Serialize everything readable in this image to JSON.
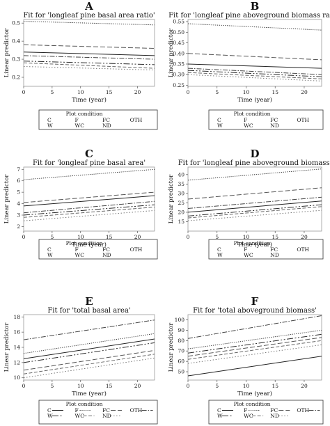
{
  "legend": {
    "title": "Plot condition",
    "items": [
      "C",
      "F",
      "FC",
      "OTH",
      "W",
      "WC",
      "ND"
    ]
  },
  "styles": {
    "C": {
      "dash": "none",
      "color": "#222222"
    },
    "F": {
      "dash": "1.2,1.6",
      "color": "#333333"
    },
    "FC": {
      "dash": "7,3",
      "color": "#555555"
    },
    "OTH": {
      "dash": "7,2,1.5,2",
      "color": "#444444"
    },
    "W": {
      "dash": "9,2.5,2,2.5,2,2.5",
      "color": "#2a2a2a"
    },
    "WC": {
      "dash": "5,2.5",
      "color": "#666666"
    },
    "ND": {
      "dash": "1.5,2.5",
      "color": "#777777"
    }
  },
  "chart_data": [
    {
      "letter": "A",
      "type": "line",
      "title": "Fit for 'longleaf pine basal area ratio'",
      "xlabel": "Time (year)",
      "ylabel": "Linear predictor",
      "xlim": [
        0,
        23
      ],
      "ylim": [
        0.15,
        0.52
      ],
      "xticks": [
        "0",
        "5",
        "10",
        "15",
        "20"
      ],
      "yticks": [
        "0.2",
        "0.3",
        "0.4",
        "0.5"
      ],
      "x": [
        0,
        23
      ],
      "series": [
        {
          "name": "F",
          "values": [
            0.51,
            0.49
          ]
        },
        {
          "name": "FC",
          "values": [
            0.38,
            0.36
          ]
        },
        {
          "name": "C",
          "values": [
            0.34,
            0.32
          ]
        },
        {
          "name": "OTH",
          "values": [
            0.32,
            0.3
          ]
        },
        {
          "name": "W",
          "values": [
            0.29,
            0.27
          ]
        },
        {
          "name": "WC",
          "values": [
            0.28,
            0.25
          ]
        },
        {
          "name": "ND",
          "values": [
            0.26,
            0.24
          ]
        }
      ]
    },
    {
      "letter": "B",
      "type": "line",
      "title": "Fit for 'longleaf pine aboveground biomass ratio'",
      "xlabel": "Time (year)",
      "ylabel": "Linear predictor",
      "xlim": [
        0,
        23
      ],
      "ylim": [
        0.245,
        0.56
      ],
      "xticks": [
        "0",
        "5",
        "10",
        "15",
        "20"
      ],
      "yticks": [
        "0.25",
        "0.30",
        "0.35",
        "0.40",
        "0.45",
        "0.50",
        "0.55"
      ],
      "x": [
        0,
        23
      ],
      "series": [
        {
          "name": "F",
          "values": [
            0.54,
            0.51
          ]
        },
        {
          "name": "FC",
          "values": [
            0.4,
            0.37
          ]
        },
        {
          "name": "C",
          "values": [
            0.35,
            0.33
          ]
        },
        {
          "name": "OTH",
          "values": [
            0.33,
            0.3
          ]
        },
        {
          "name": "W",
          "values": [
            0.32,
            0.29
          ]
        },
        {
          "name": "WC",
          "values": [
            0.31,
            0.28
          ]
        },
        {
          "name": "ND",
          "values": [
            0.3,
            0.27
          ]
        }
      ]
    },
    {
      "letter": "C",
      "type": "line",
      "title": "Fit for 'longleaf pine basal area'",
      "xlabel": "Time (year)",
      "ylabel": "Linear predictor",
      "xlim": [
        0,
        23
      ],
      "ylim": [
        1.6,
        7.2
      ],
      "xticks": [
        "0",
        "5",
        "10",
        "15",
        "20"
      ],
      "yticks": [
        "2",
        "3",
        "4",
        "5",
        "6",
        "7"
      ],
      "x": [
        0,
        23
      ],
      "series": [
        {
          "name": "F",
          "values": [
            6.1,
            7.0
          ]
        },
        {
          "name": "FC",
          "values": [
            4.1,
            5.0
          ]
        },
        {
          "name": "C",
          "values": [
            3.8,
            4.7
          ]
        },
        {
          "name": "OTH",
          "values": [
            3.2,
            4.2
          ]
        },
        {
          "name": "W",
          "values": [
            3.0,
            3.9
          ]
        },
        {
          "name": "WC",
          "values": [
            2.8,
            3.7
          ]
        },
        {
          "name": "ND",
          "values": [
            2.5,
            3.4
          ]
        }
      ]
    },
    {
      "letter": "D",
      "type": "line",
      "title": "Fit for 'longleaf pine aboveground biomass'",
      "xlabel": "Time (year)",
      "ylabel": "Linear predictor",
      "xlim": [
        0,
        23
      ],
      "ylim": [
        10,
        44
      ],
      "xticks": [
        "0",
        "5",
        "10",
        "15",
        "20"
      ],
      "yticks": [
        "15",
        "20",
        "25",
        "30",
        "35",
        "40"
      ],
      "x": [
        0,
        23
      ],
      "series": [
        {
          "name": "F",
          "values": [
            37,
            43
          ]
        },
        {
          "name": "FC",
          "values": [
            27,
            33
          ]
        },
        {
          "name": "OTH",
          "values": [
            22,
            28
          ]
        },
        {
          "name": "C",
          "values": [
            20,
            26
          ]
        },
        {
          "name": "W",
          "values": [
            18,
            24
          ]
        },
        {
          "name": "WC",
          "values": [
            17,
            23
          ]
        },
        {
          "name": "ND",
          "values": [
            15.5,
            21
          ]
        }
      ]
    },
    {
      "letter": "E",
      "type": "line",
      "title": "Fit for 'total basal area'",
      "xlabel": "Time (year)",
      "ylabel": "Linear predictor",
      "xlim": [
        0,
        23
      ],
      "ylim": [
        9.7,
        18.3
      ],
      "xticks": [
        "0",
        "5",
        "10",
        "15",
        "20"
      ],
      "yticks": [
        "10",
        "12",
        "14",
        "16",
        "18"
      ],
      "x": [
        0,
        23
      ],
      "series": [
        {
          "name": "OTH",
          "values": [
            15.0,
            17.6
          ]
        },
        {
          "name": "F",
          "values": [
            13.2,
            15.8
          ]
        },
        {
          "name": "C",
          "values": [
            12.5,
            15.1
          ]
        },
        {
          "name": "W",
          "values": [
            12.0,
            14.6
          ]
        },
        {
          "name": "FC",
          "values": [
            11.0,
            13.6
          ]
        },
        {
          "name": "WC",
          "values": [
            10.5,
            13.1
          ]
        },
        {
          "name": "ND",
          "values": [
            10.0,
            12.6
          ]
        }
      ]
    },
    {
      "letter": "F",
      "type": "line",
      "title": "Fit for 'total aboveground biomass'",
      "xlabel": "Time (year)",
      "ylabel": "Linear predictor",
      "xlim": [
        0,
        23
      ],
      "ylim": [
        42,
        105
      ],
      "xticks": [
        "0",
        "5",
        "10",
        "15",
        "20"
      ],
      "yticks": [
        "50",
        "60",
        "70",
        "80",
        "90",
        "100"
      ],
      "x": [
        0,
        23
      ],
      "series": [
        {
          "name": "OTH",
          "values": [
            82,
            104
          ]
        },
        {
          "name": "F",
          "values": [
            72,
            90
          ]
        },
        {
          "name": "W",
          "values": [
            68,
            86
          ]
        },
        {
          "name": "FC",
          "values": [
            65,
            83
          ]
        },
        {
          "name": "WC",
          "values": [
            62,
            80
          ]
        },
        {
          "name": "ND",
          "values": [
            58,
            76
          ]
        },
        {
          "name": "C",
          "values": [
            46,
            65
          ]
        }
      ]
    }
  ]
}
